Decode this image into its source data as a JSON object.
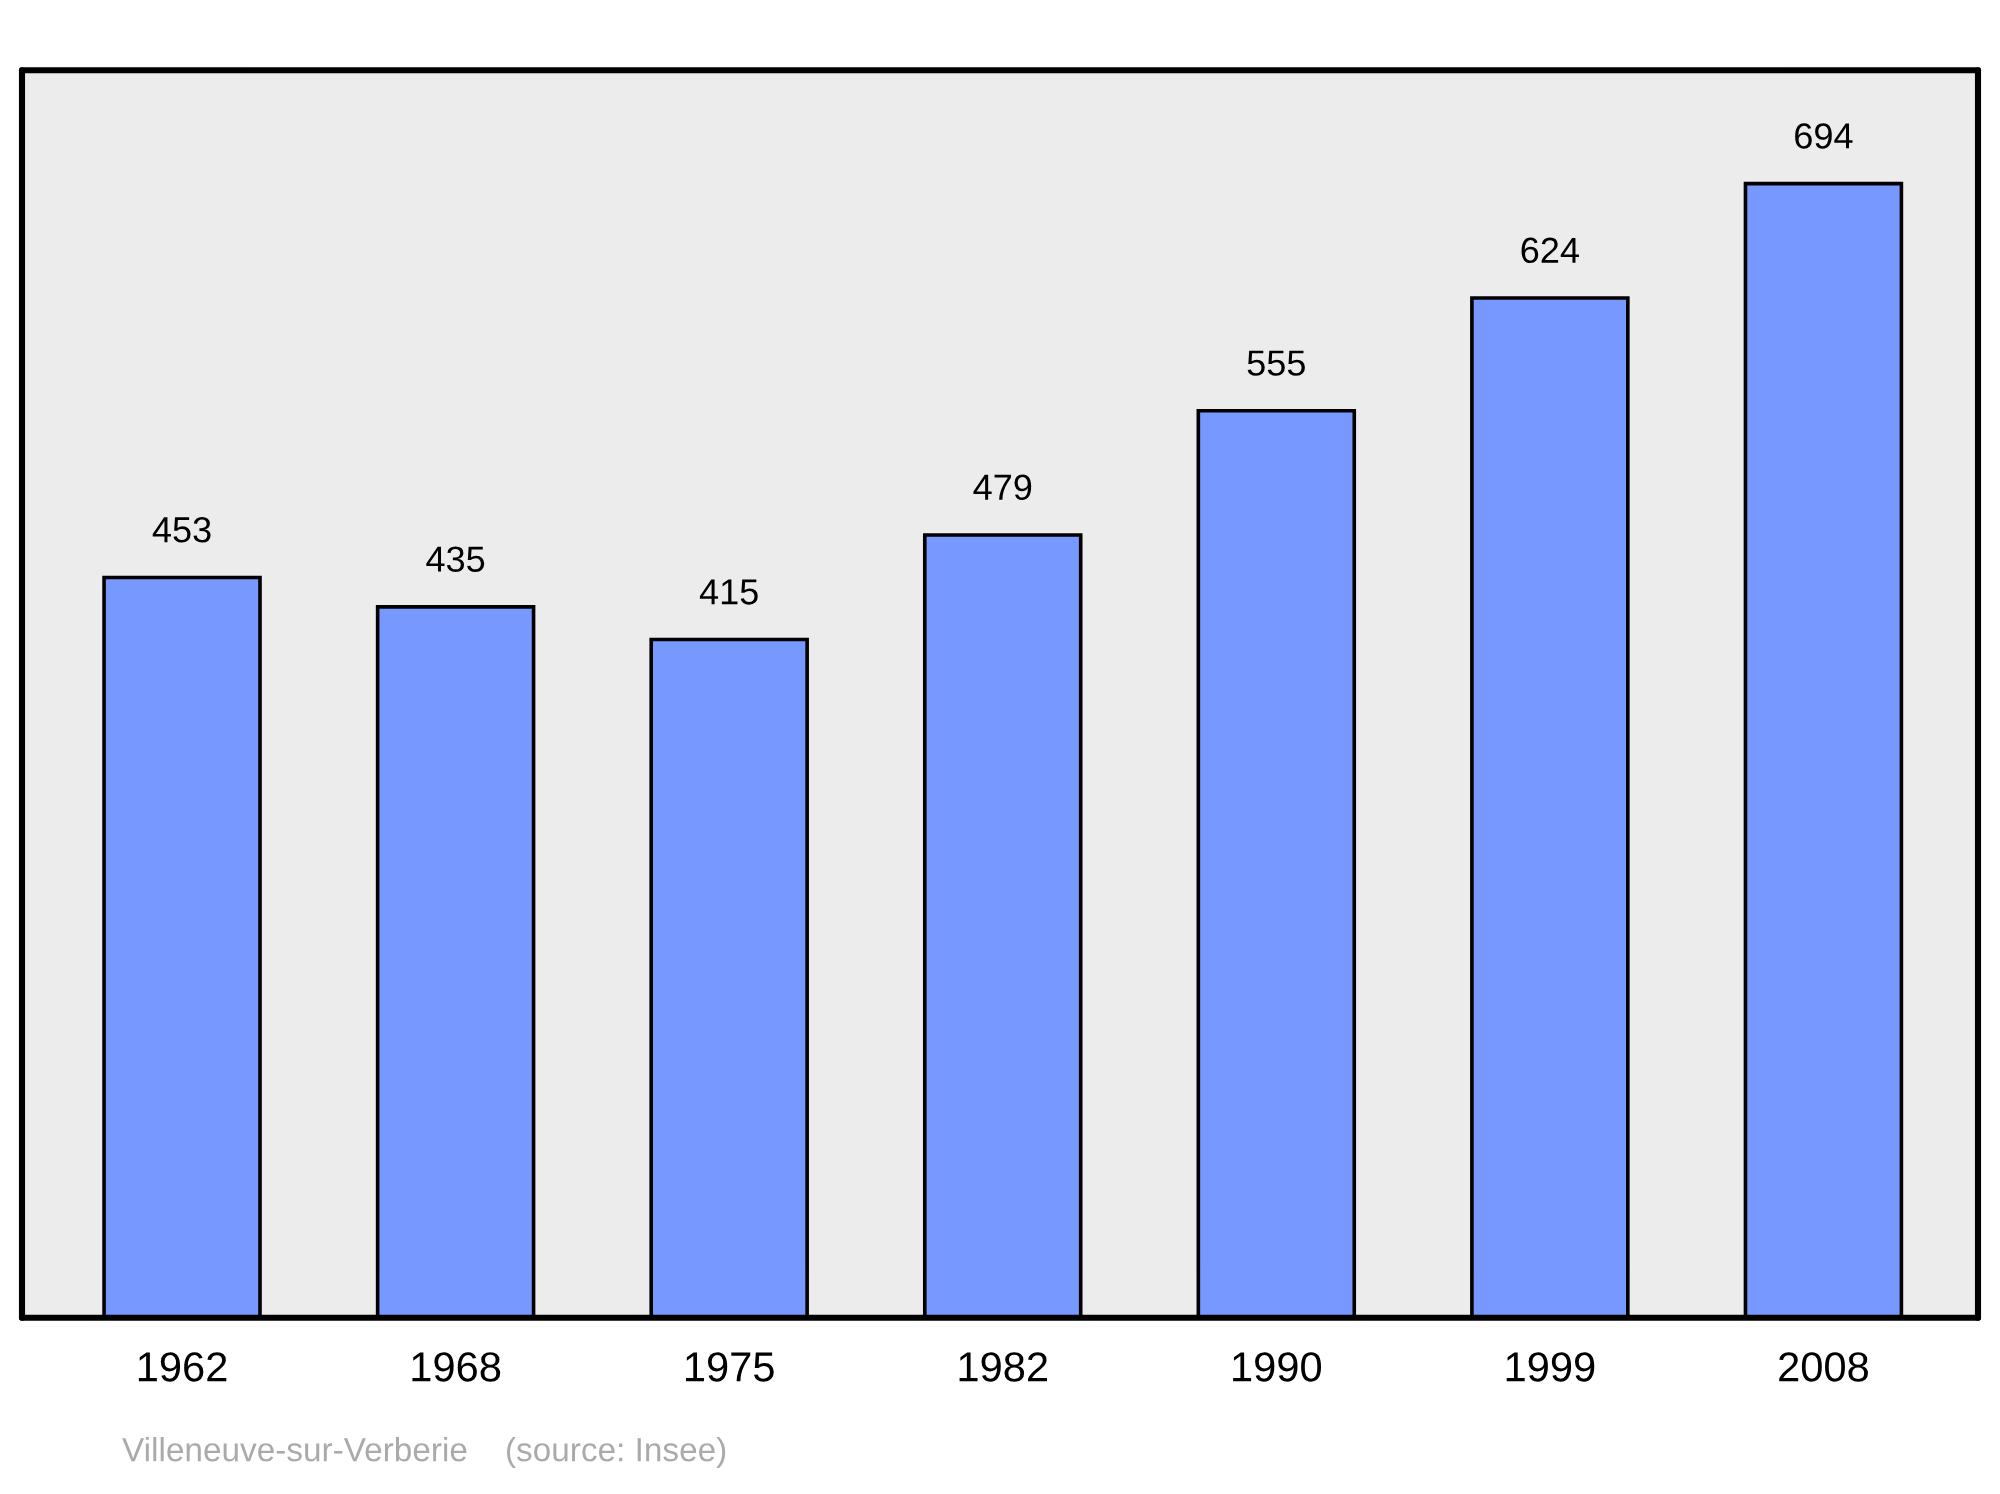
{
  "chart_data": {
    "type": "bar",
    "categories": [
      "1962",
      "1968",
      "1975",
      "1982",
      "1990",
      "1999",
      "2008"
    ],
    "values": [
      453,
      435,
      415,
      479,
      555,
      624,
      694
    ],
    "color": "#7799ff",
    "data_labels": true,
    "grid": false,
    "legend": false,
    "annotations": [
      "Villeneuve-sur-Verberie    (source: Insee)"
    ]
  }
}
